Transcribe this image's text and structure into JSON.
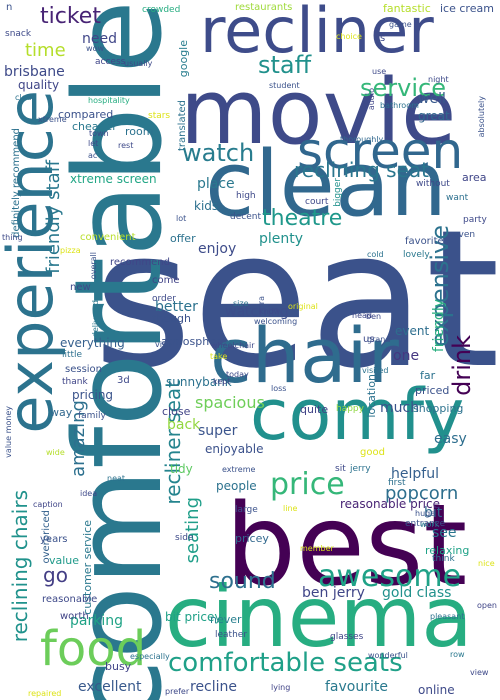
{
  "words": [
    {
      "text": "seat",
      "color": "#3b528b"
    },
    {
      "text": "comfortable",
      "color": "#2a788e"
    },
    {
      "text": "best",
      "color": "#440154"
    },
    {
      "text": "movie",
      "color": "#3e4a89"
    },
    {
      "text": "clean",
      "color": "#31688e"
    },
    {
      "text": "chair",
      "color": "#2f6c8e"
    },
    {
      "text": "comfy",
      "color": "#21908d"
    },
    {
      "text": "cinema",
      "color": "#27ad81"
    },
    {
      "text": "recliner",
      "color": "#3e4c8a"
    },
    {
      "text": "experience",
      "color": "#2c738e"
    },
    {
      "text": "screen",
      "color": "#31678e"
    },
    {
      "text": "food",
      "color": "#6ccd5a"
    },
    {
      "text": "comfortable seats",
      "color": "#1fa088"
    },
    {
      "text": "staff",
      "color": "#21918c"
    },
    {
      "text": "awesome",
      "color": "#1fa287"
    },
    {
      "text": "price",
      "color": "#35b779"
    },
    {
      "text": "ticket",
      "color": "#482475"
    },
    {
      "text": "service",
      "color": "#35b779"
    },
    {
      "text": "watch",
      "color": "#287c8e"
    },
    {
      "text": "reclining seat",
      "color": "#2a768e"
    },
    {
      "text": "theatre",
      "color": "#1f988b"
    },
    {
      "text": "sound",
      "color": "#2d708e"
    },
    {
      "text": "drink",
      "color": "#440154"
    },
    {
      "text": "recliner seat",
      "color": "#25848e"
    },
    {
      "text": "amazing",
      "color": "#2d708e"
    },
    {
      "text": "seating",
      "color": "#1f9e89"
    },
    {
      "text": "reclining chairs",
      "color": "#20928c"
    },
    {
      "text": "expensive",
      "color": "#2c728e"
    },
    {
      "text": "friendly staff",
      "color": "#2a788e"
    },
    {
      "text": "popcorn",
      "color": "#2e6f8e"
    },
    {
      "text": "time",
      "color": "#b5de2b"
    },
    {
      "text": "need",
      "color": "#404688"
    },
    {
      "text": "brisbane",
      "color": "#3e4a89"
    },
    {
      "text": "go",
      "color": "#433e85"
    },
    {
      "text": "place",
      "color": "#2a788e"
    },
    {
      "text": "kids",
      "color": "#2d708e"
    },
    {
      "text": "enjoy",
      "color": "#3e4c8a"
    },
    {
      "text": "plenty",
      "color": "#21918c"
    },
    {
      "text": "better",
      "color": "#2c728e"
    },
    {
      "text": "one",
      "color": "#453781"
    },
    {
      "text": "friendly",
      "color": "#29af7f"
    },
    {
      "text": "watching",
      "color": "#3d4e8a"
    },
    {
      "text": "event",
      "color": "#2e6e8e"
    },
    {
      "text": "spacious",
      "color": "#6ece58"
    },
    {
      "text": "well",
      "color": "#38598c"
    },
    {
      "text": "great",
      "color": "#31678e"
    },
    {
      "text": "xtreme screen",
      "color": "#21a685"
    },
    {
      "text": "sunnybank",
      "color": "#2c728e"
    },
    {
      "text": "super",
      "color": "#3a548c"
    },
    {
      "text": "back",
      "color": "#93d741"
    },
    {
      "text": "much",
      "color": "#3b528b"
    },
    {
      "text": "enjoyable",
      "color": "#3b518b"
    },
    {
      "text": "helpful",
      "color": "#355f8d"
    },
    {
      "text": "easy",
      "color": "#2e6e8e"
    },
    {
      "text": "bit",
      "color": "#31688e"
    },
    {
      "text": "see",
      "color": "#2a768e"
    },
    {
      "text": "value",
      "color": "#1f9a8a"
    },
    {
      "text": "reasonable price",
      "color": "#482475"
    },
    {
      "text": "ben jerry",
      "color": "#404688"
    },
    {
      "text": "gold class",
      "color": "#21918c"
    },
    {
      "text": "parking",
      "color": "#20a386"
    },
    {
      "text": "bit pricey",
      "color": "#1fa187"
    },
    {
      "text": "excellent",
      "color": "#38598c"
    },
    {
      "text": "recline",
      "color": "#3b528b"
    },
    {
      "text": "favourite",
      "color": "#29798e"
    },
    {
      "text": "online",
      "color": "#3e4a89"
    },
    {
      "text": "quality",
      "color": "#404688"
    },
    {
      "text": "compared",
      "color": "#3b528b"
    },
    {
      "text": "cheaper",
      "color": "#2a788e"
    },
    {
      "text": "room",
      "color": "#2c728e"
    },
    {
      "text": "definitely recommend",
      "color": "#2c718e"
    },
    {
      "text": "pricing",
      "color": "#3a538b"
    },
    {
      "text": "everything",
      "color": "#355f8d"
    },
    {
      "text": "tidy",
      "color": "#5ec962"
    },
    {
      "text": "pricey",
      "color": "#31688e"
    },
    {
      "text": "people",
      "color": "#2c728e"
    },
    {
      "text": "busy",
      "color": "#414487"
    },
    {
      "text": "never",
      "color": "#277f8e"
    },
    {
      "text": "customer service",
      "color": "#2a788e"
    },
    {
      "text": "overpriced",
      "color": "#34618d"
    },
    {
      "text": "reasonable",
      "color": "#3e4989"
    },
    {
      "text": "relaxing",
      "color": "#1fa287"
    },
    {
      "text": "shopping",
      "color": "#2c728e"
    },
    {
      "text": "quite",
      "color": "#414487"
    },
    {
      "text": "location",
      "color": "#2c728e"
    },
    {
      "text": "entrance",
      "color": "#3b528b"
    },
    {
      "text": "first",
      "color": "#2d708e"
    },
    {
      "text": "fantastic",
      "color": "#b5de2b"
    },
    {
      "text": "ice cream",
      "color": "#3b528b"
    },
    {
      "text": "google",
      "color": "#287d8e"
    },
    {
      "text": "restaurants",
      "color": "#9fda3a"
    },
    {
      "text": "crowded",
      "color": "#27ad81"
    },
    {
      "text": "snack",
      "color": "#3e4a89"
    },
    {
      "text": "access",
      "color": "#404688"
    },
    {
      "text": "translated",
      "color": "#2c728e"
    },
    {
      "text": "hospitality",
      "color": "#26ad81"
    },
    {
      "text": "stars",
      "color": "#dde318"
    },
    {
      "text": "thoroughly",
      "color": "#31688e"
    },
    {
      "text": "rest",
      "color": "#3e4a89"
    },
    {
      "text": "decent",
      "color": "#3b528b"
    },
    {
      "text": "high",
      "color": "#3e4989"
    },
    {
      "text": "lot",
      "color": "#3b528b"
    },
    {
      "text": "court",
      "color": "#3e4989"
    },
    {
      "text": "bigger",
      "color": "#21918c"
    },
    {
      "text": "without",
      "color": "#3e4989"
    },
    {
      "text": "area",
      "color": "#404688"
    },
    {
      "text": "want",
      "color": "#2d708e"
    },
    {
      "text": "party",
      "color": "#3e4989"
    },
    {
      "text": "even",
      "color": "#3b528b"
    },
    {
      "text": "lovely",
      "color": "#2a788e"
    },
    {
      "text": "favorite",
      "color": "#3b528b"
    },
    {
      "text": "offer",
      "color": "#2c728e"
    },
    {
      "text": "convenient",
      "color": "#b8de29"
    },
    {
      "text": "come",
      "color": "#414487"
    },
    {
      "text": "order",
      "color": "#3e4a89"
    },
    {
      "text": "recommend",
      "color": "#404688"
    },
    {
      "text": "though",
      "color": "#3b528b"
    },
    {
      "text": "delivered",
      "color": "#2a788e"
    },
    {
      "text": "new",
      "color": "#3e4989"
    },
    {
      "text": "session",
      "color": "#3b528b"
    },
    {
      "text": "thank",
      "color": "#404688"
    },
    {
      "text": "3d",
      "color": "#3e4989"
    },
    {
      "text": "little",
      "color": "#2d708e"
    },
    {
      "text": "way",
      "color": "#31688e"
    },
    {
      "text": "family",
      "color": "#3b528b"
    },
    {
      "text": "atmosphere",
      "color": "#3b528b"
    },
    {
      "text": "us",
      "color": "#3e4989"
    },
    {
      "text": "close",
      "color": "#414487"
    },
    {
      "text": "far",
      "color": "#2c728e"
    },
    {
      "text": "priced",
      "color": "#3b528b"
    },
    {
      "text": "happy",
      "color": "#90d743"
    },
    {
      "text": "good",
      "color": "#dde318"
    },
    {
      "text": "sit",
      "color": "#3e4989"
    },
    {
      "text": "jerry",
      "color": "#2c728e"
    },
    {
      "text": "large",
      "color": "#3b528b"
    },
    {
      "text": "glasses",
      "color": "#404688"
    },
    {
      "text": "side",
      "color": "#3e4a89"
    },
    {
      "text": "leather",
      "color": "#3b528b"
    },
    {
      "text": "especially",
      "color": "#2c728e"
    },
    {
      "text": "prefer",
      "color": "#3e4989"
    },
    {
      "text": "lying",
      "color": "#414487"
    },
    {
      "text": "wonderful",
      "color": "#3b528b"
    },
    {
      "text": "row",
      "color": "#2a788e"
    },
    {
      "text": "view",
      "color": "#3e4989"
    },
    {
      "text": "open",
      "color": "#404688"
    },
    {
      "text": "nice",
      "color": "#dde318"
    },
    {
      "text": "think",
      "color": "#2c728e"
    },
    {
      "text": "work",
      "color": "#2a788e"
    },
    {
      "text": "huge",
      "color": "#3b528b"
    },
    {
      "text": "pleasant",
      "color": "#2c728e"
    },
    {
      "text": "member",
      "color": "#d8e219"
    },
    {
      "text": "line",
      "color": "#dde318"
    },
    {
      "text": "extreme",
      "color": "#3b528b"
    },
    {
      "text": "neat",
      "color": "#2c728e"
    },
    {
      "text": "idea",
      "color": "#3e4989"
    },
    {
      "text": "caption",
      "color": "#404688"
    },
    {
      "text": "wide",
      "color": "#b5de2b"
    },
    {
      "text": "years",
      "color": "#3b528b"
    },
    {
      "text": "worth",
      "color": "#414487"
    },
    {
      "text": "repaired",
      "color": "#dde318"
    },
    {
      "text": "value money",
      "color": "#3b528b"
    },
    {
      "text": "pizza",
      "color": "#dde318"
    },
    {
      "text": "thing",
      "color": "#3e4a89"
    },
    {
      "text": "overall",
      "color": "#3b528b"
    },
    {
      "text": "visit",
      "color": "#3b528b"
    },
    {
      "text": "size",
      "color": "#2c728e"
    },
    {
      "text": "welcoming",
      "color": "#3b528b"
    },
    {
      "text": "know",
      "color": "#3e4a89"
    },
    {
      "text": "head",
      "color": "#3e4989"
    },
    {
      "text": "cold",
      "color": "#2c728e"
    },
    {
      "text": "original",
      "color": "#dde318"
    },
    {
      "text": "wheelchair",
      "color": "#3e4a89"
    },
    {
      "text": "take",
      "color": "#dde318"
    },
    {
      "text": "kept",
      "color": "#404688"
    },
    {
      "text": "today",
      "color": "#3e4a89"
    },
    {
      "text": "loss",
      "color": "#3b528b"
    },
    {
      "text": "visited",
      "color": "#2c728e"
    },
    {
      "text": "grand",
      "color": "#3b528b"
    },
    {
      "text": "ben",
      "color": "#3e4989"
    },
    {
      "text": "student",
      "color": "#3b528b"
    },
    {
      "text": "usually",
      "color": "#3e4a89"
    },
    {
      "text": "wow",
      "color": "#3b528b"
    },
    {
      "text": "bathroom",
      "color": "#2c728e"
    },
    {
      "text": "choice",
      "color": "#dde318"
    },
    {
      "text": "use",
      "color": "#3e4989"
    },
    {
      "text": "game",
      "color": "#3b528b"
    },
    {
      "text": "night",
      "color": "#3e4a89"
    },
    {
      "text": "absolutely",
      "color": "#3b528b"
    },
    {
      "text": "audio",
      "color": "#404688"
    },
    {
      "text": "let",
      "color": "#3e4989"
    },
    {
      "text": "ac",
      "color": "#3b528b"
    },
    {
      "text": "clear",
      "color": "#2c728e"
    },
    {
      "text": "xtreme",
      "color": "#3b528b"
    },
    {
      "text": "town",
      "color": "#3e4989"
    },
    {
      "text": "n",
      "color": "#3b528b"
    },
    {
      "text": "s",
      "color": "#3e4989"
    },
    {
      "text": "gra",
      "color": "#3b528b"
    }
  ]
}
